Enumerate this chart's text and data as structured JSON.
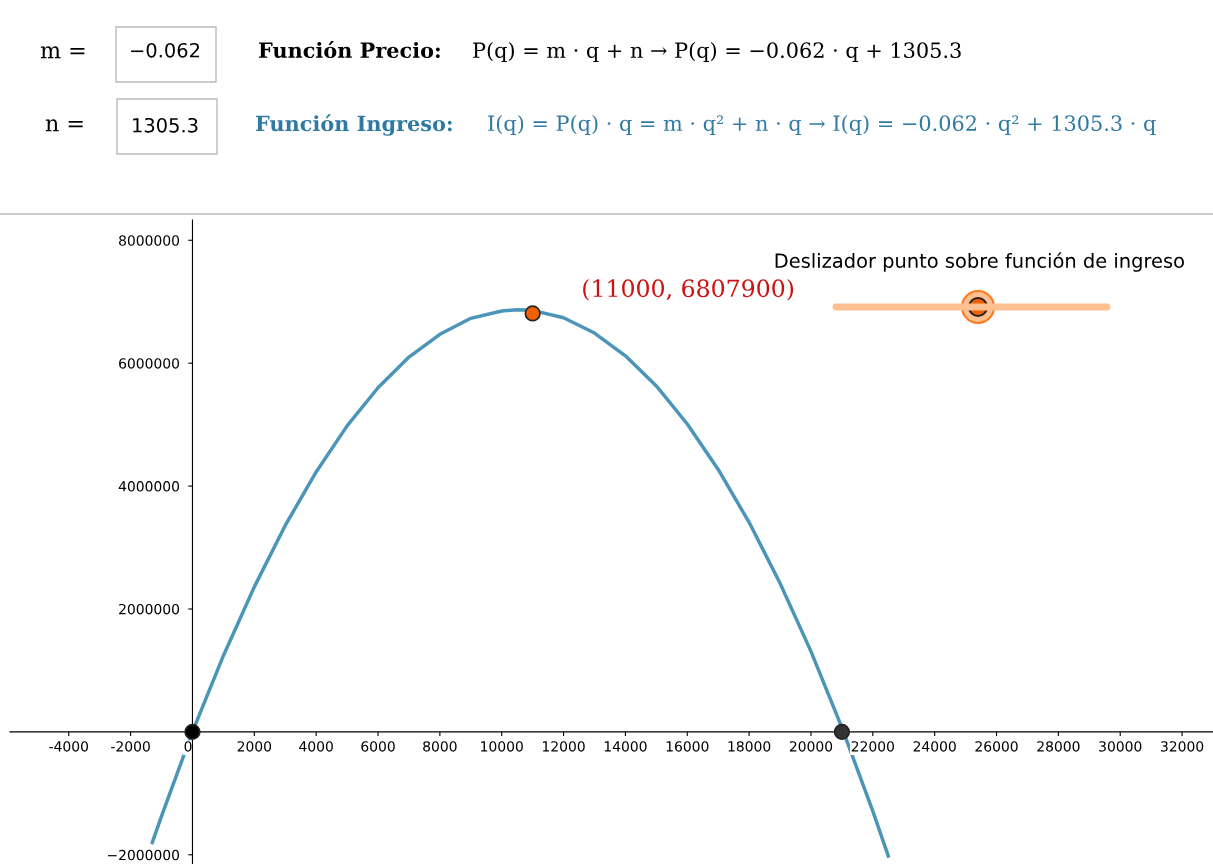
{
  "chart_data": {
    "type": "line",
    "annotations": [
      "m =",
      "−0.062",
      "Función Precio:",
      "P(q) = m · q + n → P(q) = −0.062 · q + 1305.3",
      "n =",
      "1305.3",
      "Función Ingreso:",
      "I(q) = P(q) · q = m · q² + n · q → I(q) = −0.062 · q² + 1305.3 · q",
      "Deslizador punto sobre función de ingreso",
      {
        "text": "(11000, 6807900)",
        "x": 11000,
        "y": 6807900
      }
    ],
    "series": [
      {
        "color": "#4a95b8",
        "x": [
          -1300,
          -1000,
          0,
          1000,
          2000,
          3000,
          4000,
          5000,
          6000,
          7000,
          8000,
          9000,
          10000,
          10500,
          11000,
          12000,
          13000,
          14000,
          15000,
          16000,
          17000,
          18000,
          19000,
          20000,
          21000,
          22000,
          22500
        ],
        "values": [
          -1800000,
          -1370000,
          0,
          1240000,
          2360000,
          3360000,
          4230000,
          4980000,
          5600000,
          6100000,
          6470000,
          6730000,
          6850000,
          6870000,
          6860000,
          6740000,
          6490000,
          6120000,
          5630000,
          5010000,
          4270000,
          3410000,
          2420000,
          1310000,
          70000,
          -1290000,
          -2020000
        ]
      },
      {
        "type": "scatter",
        "x": [
          0,
          11000,
          21000
        ],
        "values": [
          0,
          6810000,
          0
        ],
        "colors": [
          "#000000",
          "#f06000",
          "#333333"
        ]
      }
    ],
    "xlim": [
      -5900,
      33000
    ],
    "ylim": [
      -2150000,
      8330000
    ],
    "xticks": [
      -4000,
      -2000,
      0,
      2000,
      4000,
      6000,
      8000,
      10000,
      12000,
      14000,
      16000,
      18000,
      20000,
      22000,
      24000,
      26000,
      28000,
      30000,
      32000
    ],
    "yticks": [
      {
        "value": -2000000,
        "label": "−2000000"
      },
      2000000,
      4000000,
      6000000,
      8000000
    ],
    "grid": false,
    "legend": false
  }
}
